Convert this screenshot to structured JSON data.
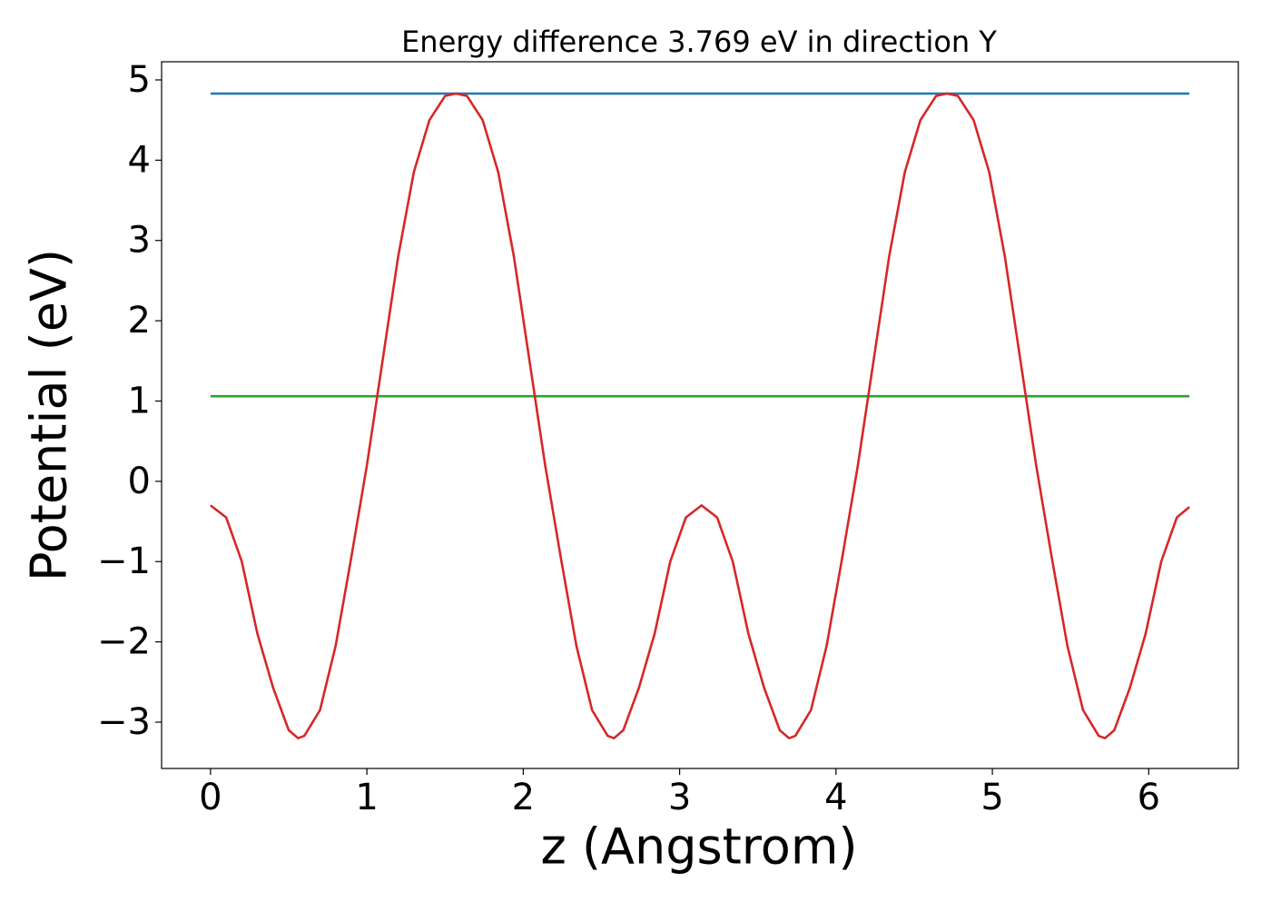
{
  "chart_data": {
    "type": "line",
    "title": "Energy difference 3.769 eV in direction Y",
    "xlabel": "z (Angstrom)",
    "ylabel": "Potential (eV)",
    "xlim": [
      -0.313,
      6.573
    ],
    "ylim": [
      -3.577,
      5.226
    ],
    "xticks": [
      0,
      1,
      2,
      3,
      4,
      5,
      6
    ],
    "yticks": [
      {
        "value": -3,
        "label": "−3"
      },
      {
        "value": -2,
        "label": "−2"
      },
      {
        "value": -1,
        "label": "−1"
      },
      0,
      1,
      2,
      3,
      4,
      5
    ],
    "grid": false,
    "series": [
      {
        "color": "#1f77b4",
        "x": [
          0,
          6.26
        ],
        "values": [
          4.83,
          4.83
        ]
      },
      {
        "color": "#2ca02c",
        "x": [
          0,
          6.26
        ],
        "values": [
          1.06,
          1.06
        ]
      },
      {
        "color": "#d62728",
        "x": [
          0,
          0.1,
          0.2,
          0.3,
          0.4,
          0.5,
          0.56,
          0.6,
          0.7,
          0.8,
          0.9,
          1.0,
          1.1,
          1.2,
          1.3,
          1.4,
          1.5,
          1.57,
          1.64,
          1.74,
          1.84,
          1.94,
          2.04,
          2.14,
          2.24,
          2.34,
          2.44,
          2.54,
          2.58,
          2.64,
          2.74,
          2.84,
          2.94,
          3.04,
          3.14,
          3.24,
          3.34,
          3.44,
          3.54,
          3.64,
          3.7,
          3.74,
          3.84,
          3.94,
          4.04,
          4.14,
          4.24,
          4.34,
          4.44,
          4.54,
          4.64,
          4.71,
          4.78,
          4.88,
          4.98,
          5.08,
          5.18,
          5.28,
          5.38,
          5.48,
          5.58,
          5.68,
          5.72,
          5.78,
          5.88,
          5.98,
          6.08,
          6.18,
          6.26
        ],
        "values": [
          -0.3,
          -0.45,
          -1.0,
          -1.9,
          -2.57,
          -3.1,
          -3.2,
          -3.17,
          -2.85,
          -2.05,
          -0.95,
          0.2,
          1.5,
          2.8,
          3.85,
          4.5,
          4.8,
          4.83,
          4.8,
          4.5,
          3.85,
          2.8,
          1.5,
          0.2,
          -0.95,
          -2.05,
          -2.85,
          -3.17,
          -3.2,
          -3.1,
          -2.57,
          -1.9,
          -1.0,
          -0.45,
          -0.3,
          -0.45,
          -1.0,
          -1.9,
          -2.57,
          -3.1,
          -3.2,
          -3.17,
          -2.85,
          -2.05,
          -0.95,
          0.2,
          1.5,
          2.8,
          3.85,
          4.5,
          4.8,
          4.83,
          4.8,
          4.5,
          3.85,
          2.8,
          1.5,
          0.2,
          -0.95,
          -2.05,
          -2.85,
          -3.17,
          -3.2,
          -3.1,
          -2.57,
          -1.9,
          -1.0,
          -0.45,
          -0.32
        ]
      }
    ]
  }
}
